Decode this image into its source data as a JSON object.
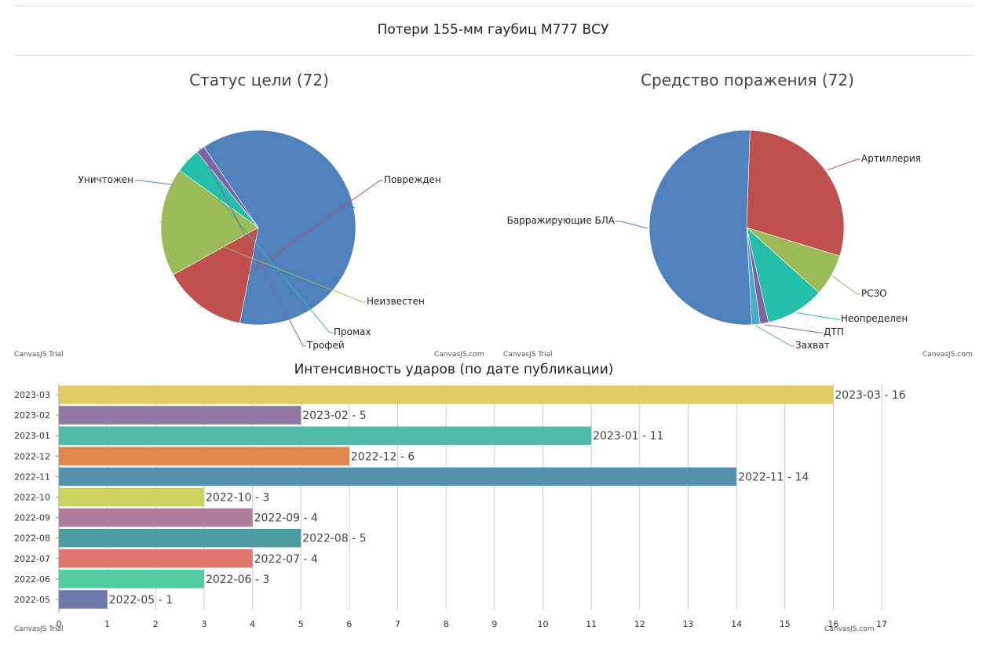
{
  "page": {
    "title": "Потери 155-мм гаубиц М777 ВСУ"
  },
  "chart_data": [
    {
      "type": "pie",
      "title": "Статус цели (72)",
      "labels": [
        "Уничтожен",
        "Поврежден",
        "Неизвестен",
        "Промах",
        "Трофей"
      ],
      "values": [
        45,
        10,
        13,
        3,
        1
      ],
      "colors": [
        "#4f81bc",
        "#c0504e",
        "#9bbb58",
        "#23bfaa",
        "#8064a1"
      ],
      "credit_left": "CanvasJS Trial",
      "credit_right": "CanvasJS.com"
    },
    {
      "type": "pie",
      "title": "Средство поражения (72)",
      "labels": [
        "Артиллерия",
        "РСЗО",
        "Неопределен",
        "ДТП",
        "Захват",
        "Барражирующие БЛА"
      ],
      "values": [
        21,
        5,
        7,
        1,
        1,
        37
      ],
      "colors": [
        "#c0504e",
        "#9bbb58",
        "#23bfaa",
        "#8064a1",
        "#4aacc5",
        "#4f81bc"
      ],
      "credit_left": "CanvasJS Trial",
      "credit_right": "CanvasJS.com"
    },
    {
      "type": "bar",
      "orientation": "horizontal",
      "title": "Интенсивность ударов (по дате публикации)",
      "categories": [
        "2022-05",
        "2022-06",
        "2022-07",
        "2022-08",
        "2022-09",
        "2022-10",
        "2022-11",
        "2022-12",
        "2023-01",
        "2023-02",
        "2023-03"
      ],
      "values": [
        1,
        3,
        4,
        5,
        4,
        3,
        14,
        6,
        11,
        5,
        16
      ],
      "data_labels": [
        "2022-05 - 1",
        "2022-06 - 3",
        "2022-07 - 4",
        "2022-08 - 5",
        "2022-09 - 4",
        "2022-10 - 3",
        "2022-11 - 14",
        "2022-12 - 6",
        "2023-01 - 11",
        "2023-02 - 5",
        "2023-03 - 16"
      ],
      "colors": [
        "#6d78ad",
        "#51cda0",
        "#df7970",
        "#4c9ca0",
        "#ae7d99",
        "#c9d45c",
        "#5592ad",
        "#df874d",
        "#52bca8",
        "#8e7aa3",
        "#e3cb64"
      ],
      "xlim": [
        0,
        17
      ],
      "xticks": [
        0,
        1,
        2,
        3,
        4,
        5,
        6,
        7,
        8,
        9,
        10,
        11,
        12,
        13,
        14,
        15,
        16,
        17
      ],
      "grid": true,
      "credit_left": "CanvasJS Trial",
      "credit_right": "CanvasJS.com"
    }
  ]
}
